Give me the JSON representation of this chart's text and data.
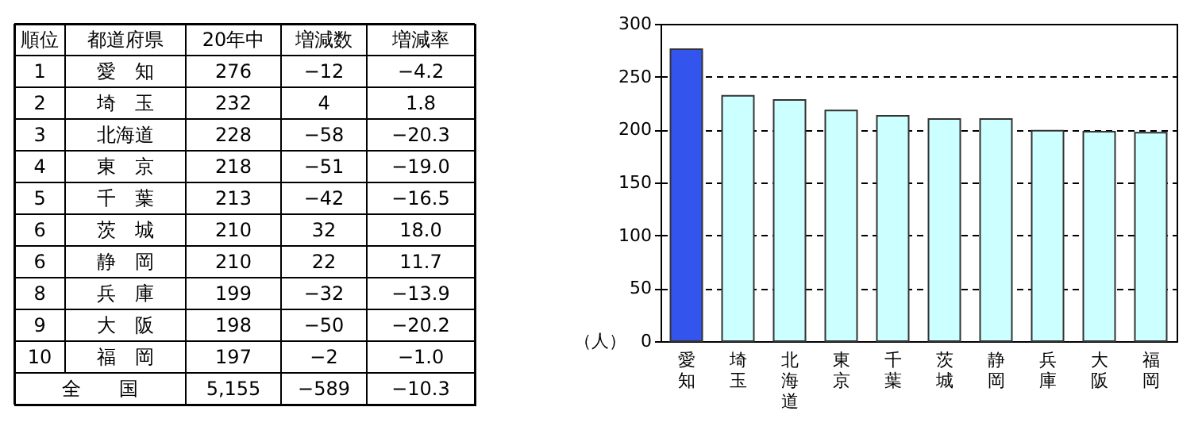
{
  "chart_data": [
    {
      "type": "other",
      "annotations": [
        "順位",
        "都道府県",
        "20年中",
        "増減数",
        "増減率",
        "1",
        "愛　知",
        "276",
        "−12",
        "−4.2",
        "2",
        "埼　玉",
        "232",
        "4",
        "1.8",
        "3",
        "北海道",
        "228",
        "−58",
        "−20.3",
        "4",
        "東　京",
        "218",
        "−51",
        "−19.0",
        "5",
        "千　葉",
        "213",
        "−42",
        "−16.5",
        "6",
        "茨　城",
        "210",
        "32",
        "18.0",
        "6",
        "静　岡",
        "210",
        "22",
        "11.7",
        "8",
        "兵　庫",
        "199",
        "−32",
        "−13.9",
        "9",
        "大　阪",
        "198",
        "−50",
        "−20.2",
        "10",
        "福　岡",
        "197",
        "−2",
        "−1.0",
        "全　　国",
        "5,155",
        "−589",
        "−10.3"
      ]
    },
    {
      "type": "bar",
      "categories": [
        "愛知",
        "埼玉",
        "北海道",
        "東京",
        "千葉",
        "茨城",
        "静岡",
        "兵庫",
        "大阪",
        "福岡"
      ],
      "values": [
        276,
        232,
        228,
        218,
        213,
        210,
        210,
        199,
        198,
        197
      ],
      "colors": [
        "#3355ee",
        "#ccffff",
        "#ccffff",
        "#ccffff",
        "#ccffff",
        "#ccffff",
        "#ccffff",
        "#ccffff",
        "#ccffff",
        "#ccffff"
      ],
      "ylabel": "（人）",
      "ylim": [
        0,
        300
      ],
      "yticks": [
        0,
        50,
        100,
        150,
        200,
        250,
        300
      ],
      "grid": "y"
    }
  ]
}
